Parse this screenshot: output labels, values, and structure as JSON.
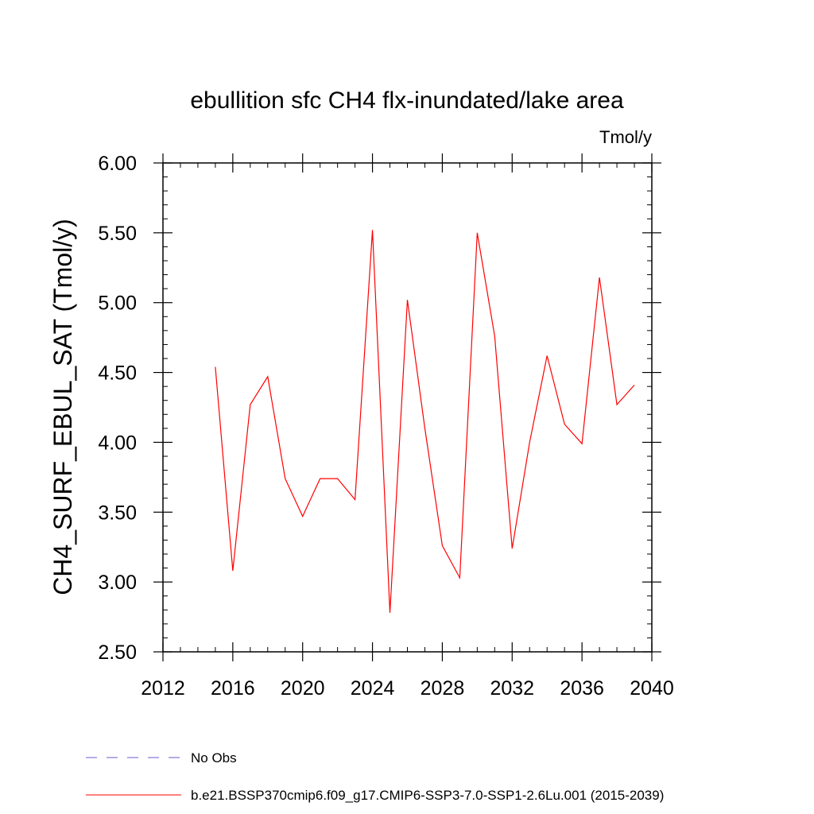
{
  "chart_data": {
    "type": "line",
    "title": "ebullition sfc CH4 flx-inundated/lake area",
    "units_label": "Tmol/y",
    "ylabel": "CH4_SURF_EBUL_SAT  (Tmol/y)",
    "xlabel": "",
    "xlim": [
      2012,
      2040
    ],
    "ylim": [
      2.5,
      6.0
    ],
    "x_ticks": [
      2012,
      2016,
      2020,
      2024,
      2028,
      2032,
      2036,
      2040
    ],
    "x_tick_labels": [
      "2012",
      "2016",
      "2020",
      "2024",
      "2028",
      "2032",
      "2036",
      "2040"
    ],
    "y_ticks": [
      2.5,
      3.0,
      3.5,
      4.0,
      4.5,
      5.0,
      5.5,
      6.0
    ],
    "y_tick_labels": [
      "2.50",
      "3.00",
      "3.50",
      "4.00",
      "4.50",
      "5.00",
      "5.50",
      "6.00"
    ],
    "legend_position": "bottom",
    "series": [
      {
        "name": "No Obs",
        "color": "#6a5acd",
        "dash": "dashed",
        "x": [],
        "values": []
      },
      {
        "name": "b.e21.BSSP370cmip6.f09_g17.CMIP6-SSP3-7.0-SSP1-2.6Lu.001 (2015-2039)",
        "color": "#ff0000",
        "dash": "solid",
        "x": [
          2015,
          2016,
          2017,
          2018,
          2019,
          2020,
          2021,
          2022,
          2023,
          2024,
          2025,
          2026,
          2027,
          2028,
          2029,
          2030,
          2031,
          2032,
          2033,
          2034,
          2035,
          2036,
          2037,
          2038,
          2039
        ],
        "values": [
          4.54,
          3.08,
          4.27,
          4.47,
          3.74,
          3.47,
          3.74,
          3.74,
          3.59,
          5.52,
          2.78,
          5.02,
          4.1,
          3.26,
          3.03,
          5.5,
          4.76,
          3.24,
          4.0,
          4.62,
          4.13,
          3.99,
          5.18,
          4.27,
          4.41
        ]
      }
    ]
  }
}
